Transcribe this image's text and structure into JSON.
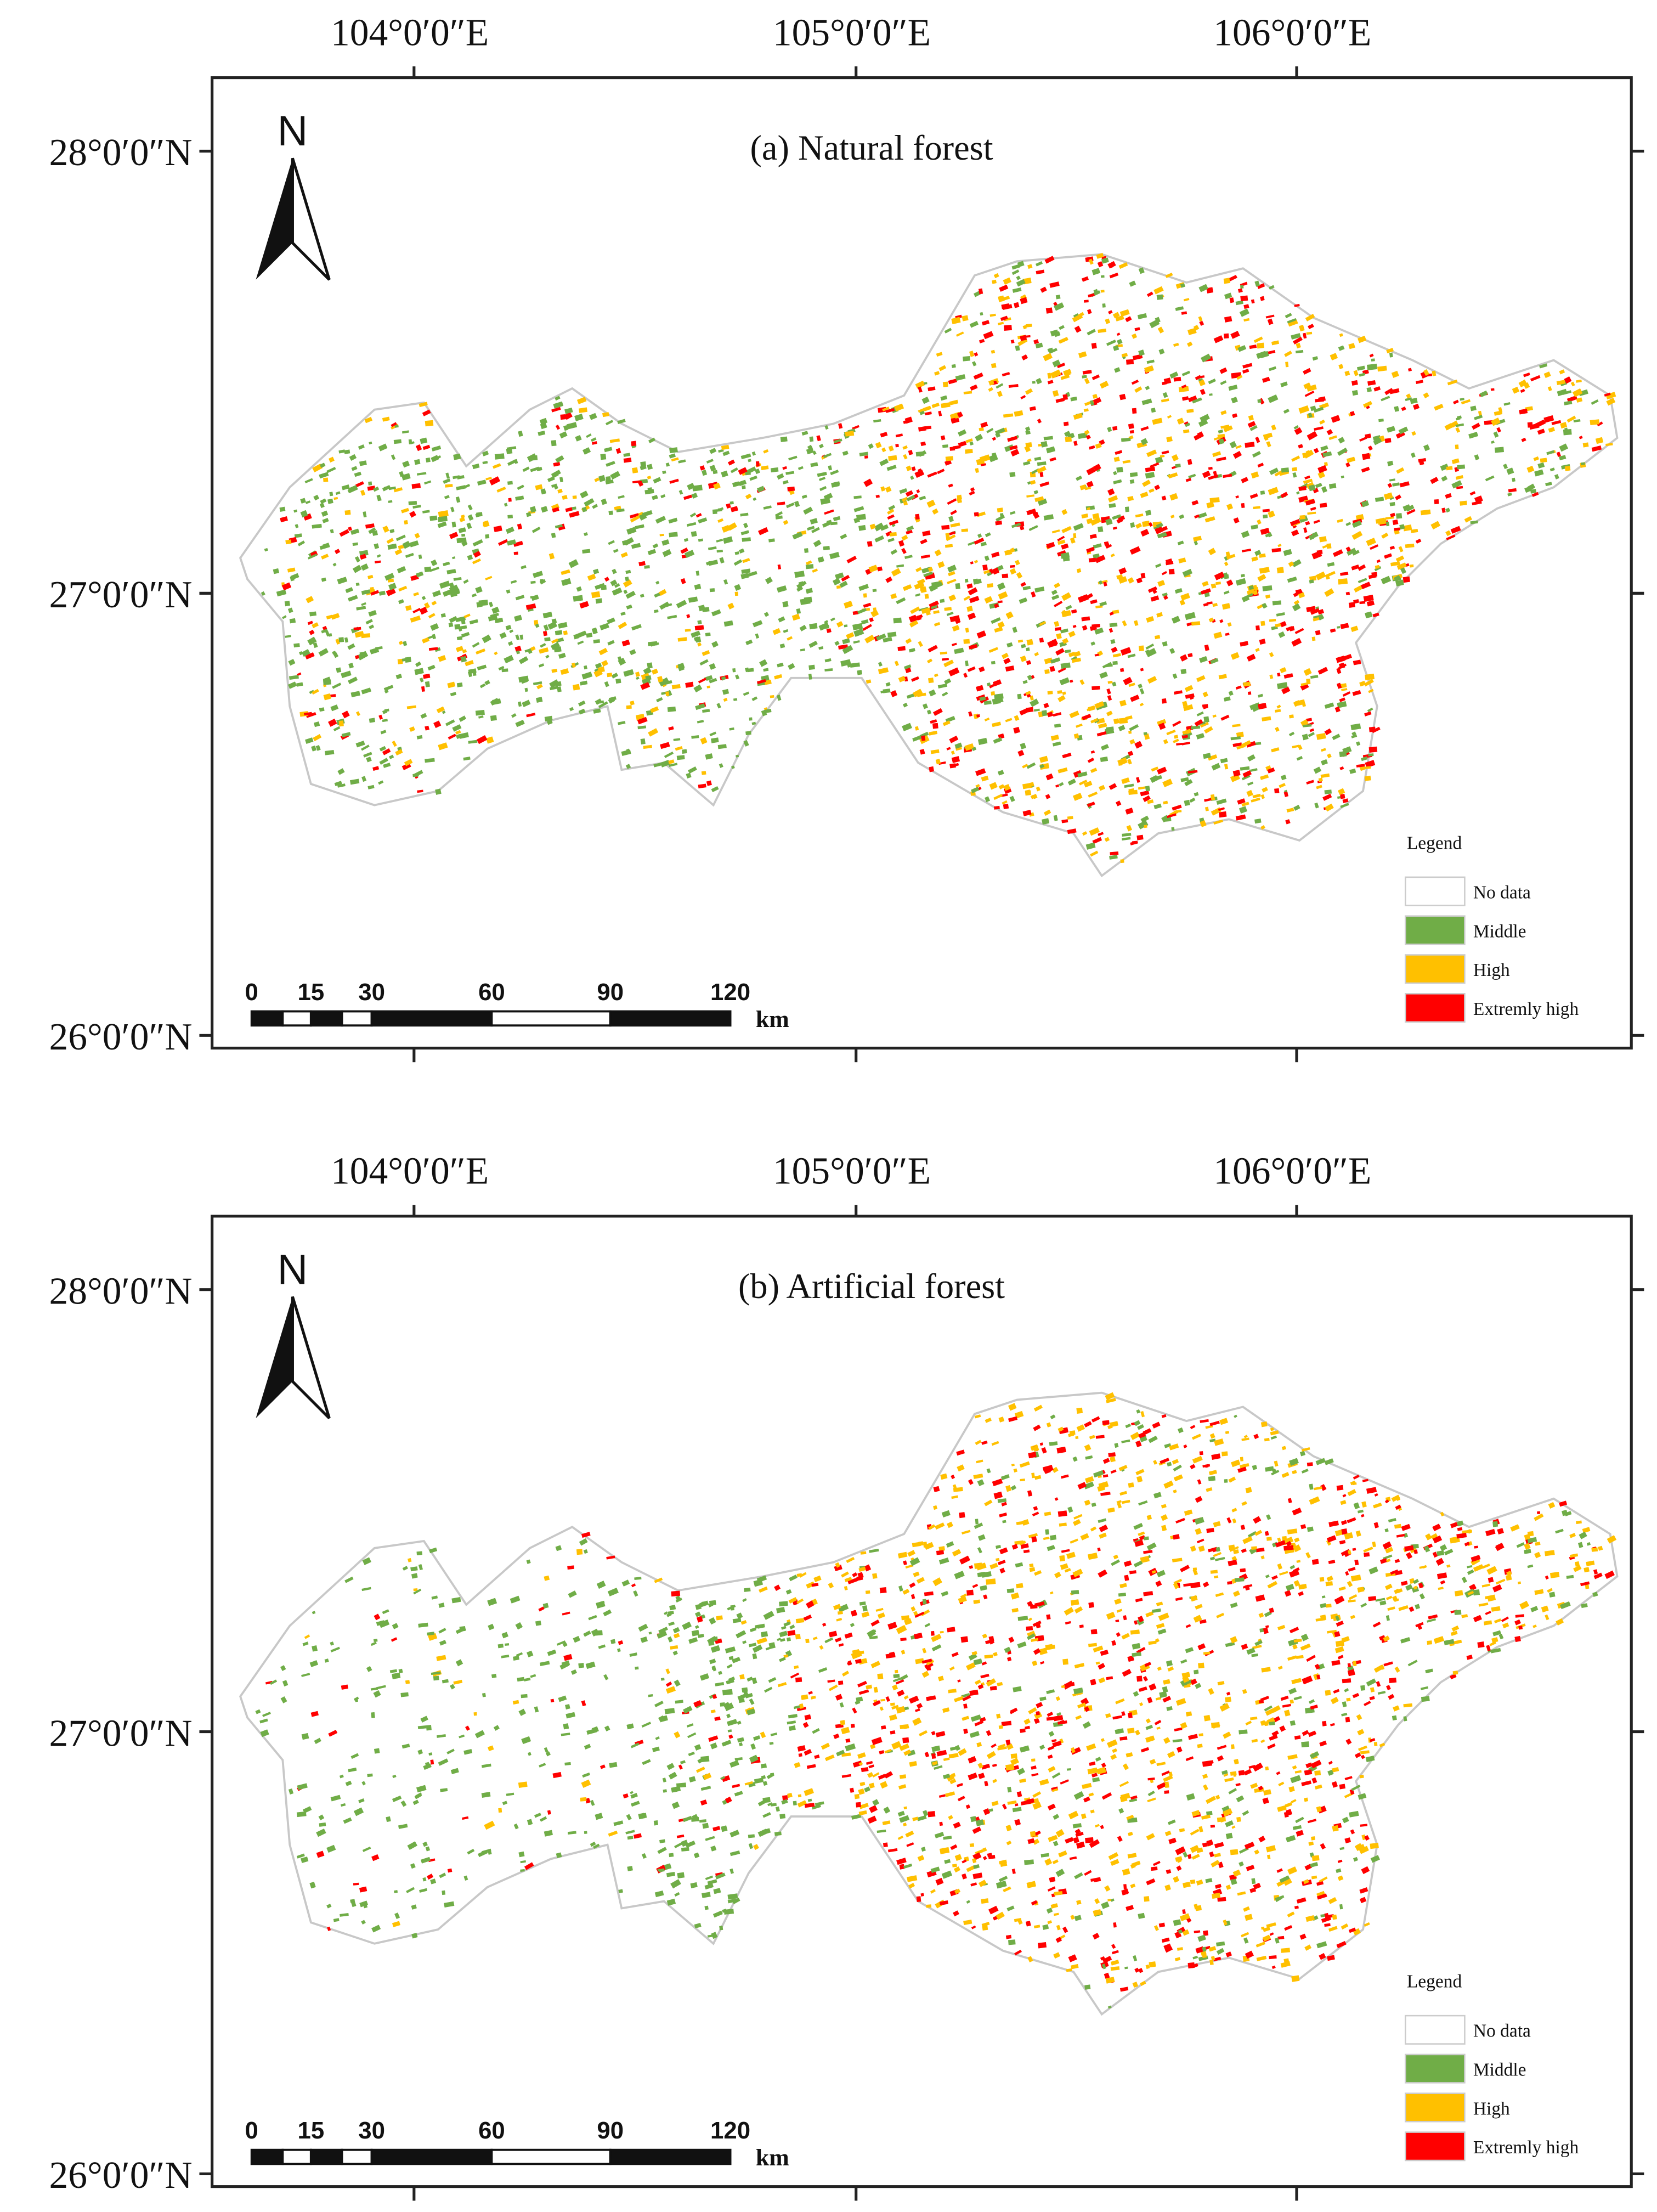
{
  "panels": [
    {
      "title": "(a)  Natural forest",
      "north": "N",
      "longitude_labels": [
        "104°0′0″E",
        "105°0′0″E",
        "106°0′0″E"
      ],
      "latitude_labels": [
        "28°0′0″N",
        "27°0′0″N",
        "26°0′0″N"
      ],
      "scale_bar": {
        "labels": [
          "0",
          "15",
          "30",
          "60",
          "90",
          "120"
        ],
        "unit": "km"
      },
      "legend": {
        "title": "Legend",
        "items": [
          {
            "label": "No data",
            "color": "#ffffff"
          },
          {
            "label": "Middle",
            "color": "#70ad47"
          },
          {
            "label": "High",
            "color": "#ffc000"
          },
          {
            "label": "Extremly high",
            "color": "#ff0000"
          }
        ]
      }
    },
    {
      "title": "(b)  Artificial forest",
      "north": "N",
      "longitude_labels": [
        "104°0′0″E",
        "105°0′0″E",
        "106°0′0″E"
      ],
      "latitude_labels": [
        "28°0′0″N",
        "27°0′0″N",
        "26°0′0″N"
      ],
      "scale_bar": {
        "labels": [
          "0",
          "15",
          "30",
          "60",
          "90",
          "120"
        ],
        "unit": "km"
      },
      "legend": {
        "title": "Legend",
        "items": [
          {
            "label": "No data",
            "color": "#ffffff"
          },
          {
            "label": "Middle",
            "color": "#70ad47"
          },
          {
            "label": "High",
            "color": "#ffc000"
          },
          {
            "label": "Extremly high",
            "color": "#ff0000"
          }
        ]
      }
    }
  ]
}
